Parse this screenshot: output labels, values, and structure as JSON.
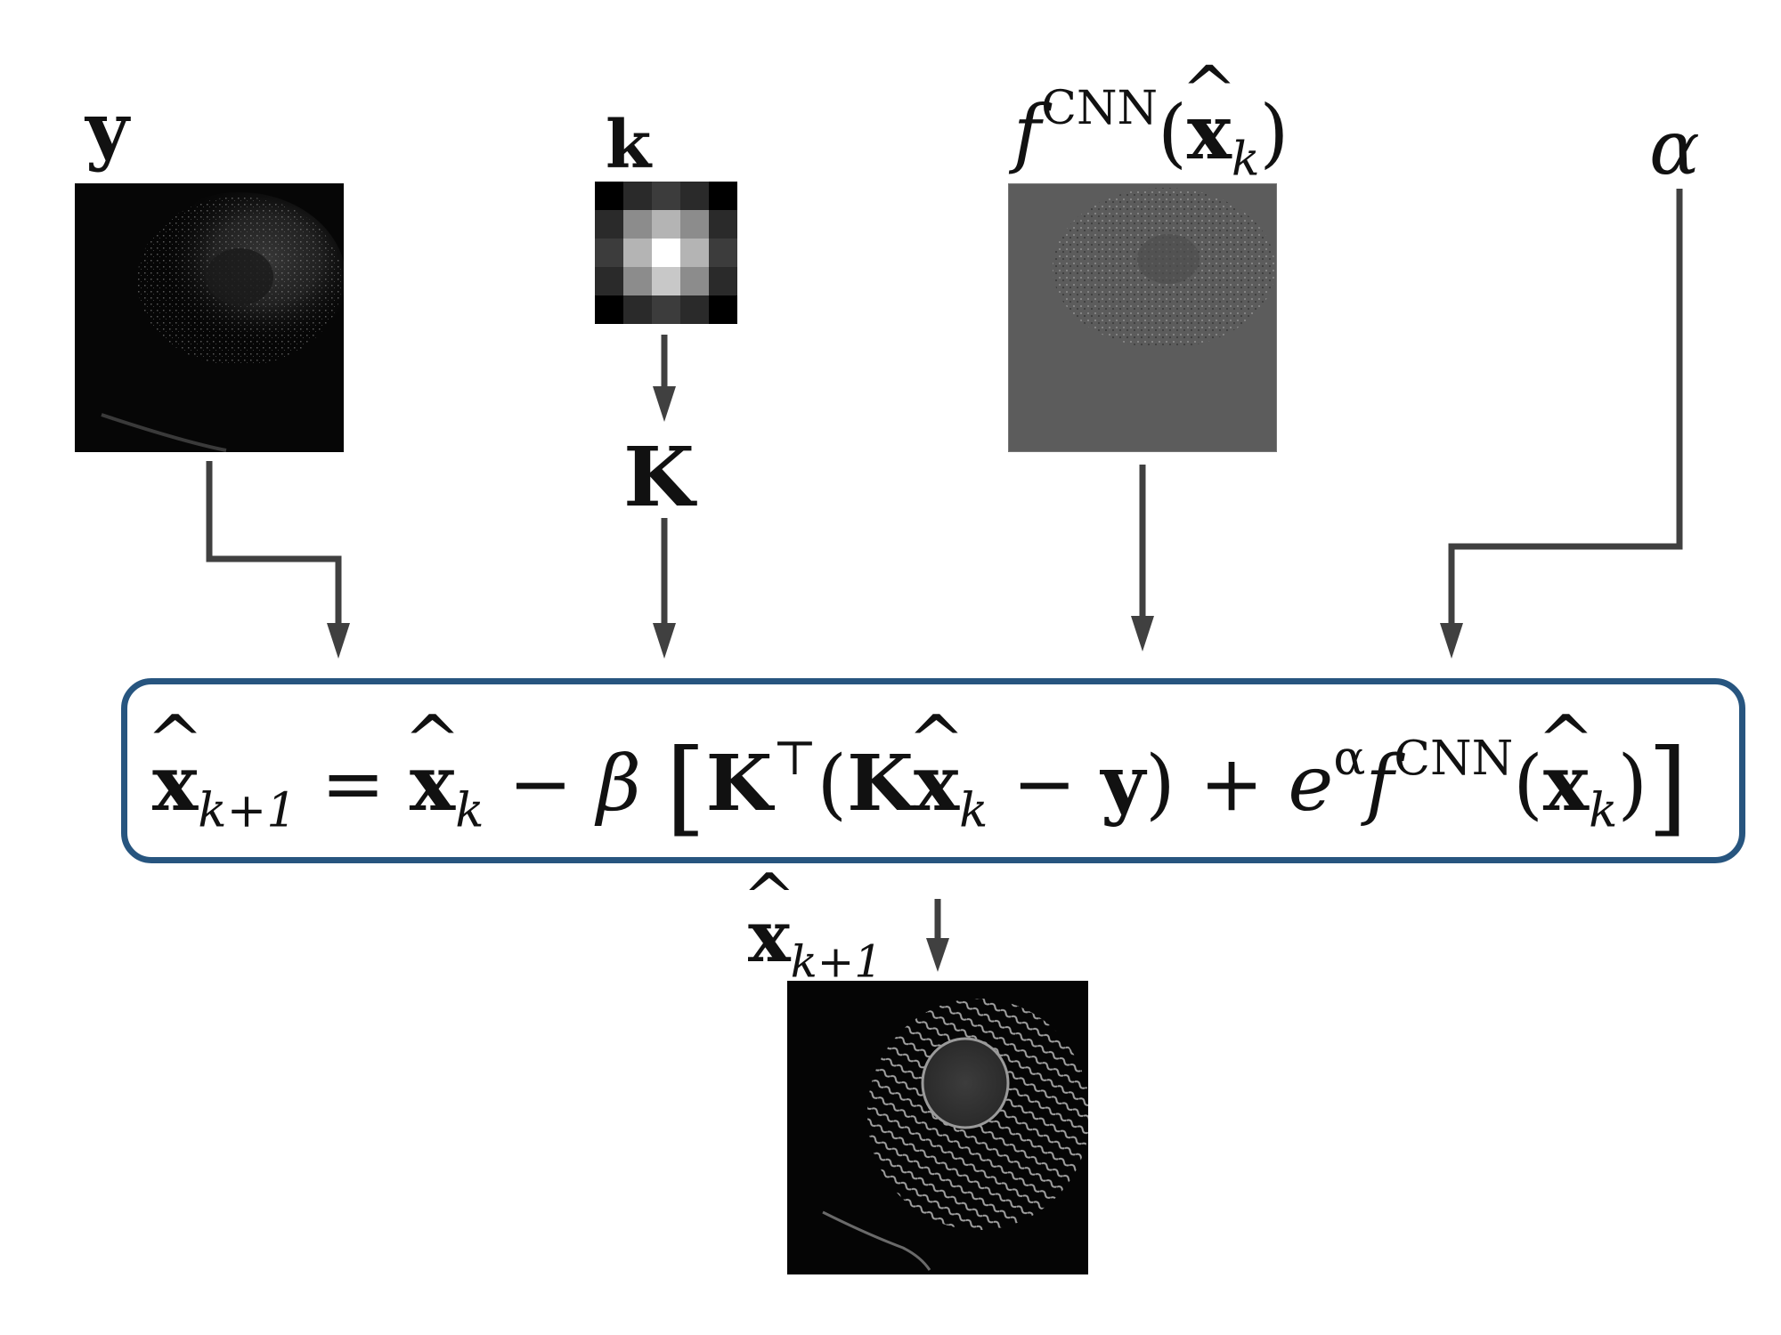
{
  "labels": {
    "y": "y",
    "k": "k",
    "K": "K",
    "f_main": "f",
    "f_sup": "CNN",
    "x_hat": "x",
    "sub_k": "k",
    "alpha": "α",
    "out_x": "x",
    "out_sub": "k+1"
  },
  "equation": {
    "lhs_x": "x",
    "lhs_sub": "k+1",
    "eq": " = ",
    "x": "x",
    "sub_k": "k",
    "minus_beta": " − β ",
    "lb": "[",
    "K": "K",
    "T": "⊤",
    "open": "(",
    "K2": "K",
    "x2": "x",
    "sub_k2": "k",
    "minus": " − ",
    "y": "y",
    "close_plus": ") + ",
    "e": "e",
    "alpha": "α",
    "f": "f",
    "cnn": "CNN",
    "open2": "(",
    "x3": "x",
    "sub_k3": "k",
    "close2": ")",
    "rb": "]"
  },
  "colors": {
    "arrow": "#404040",
    "box_border": "#27557f"
  }
}
